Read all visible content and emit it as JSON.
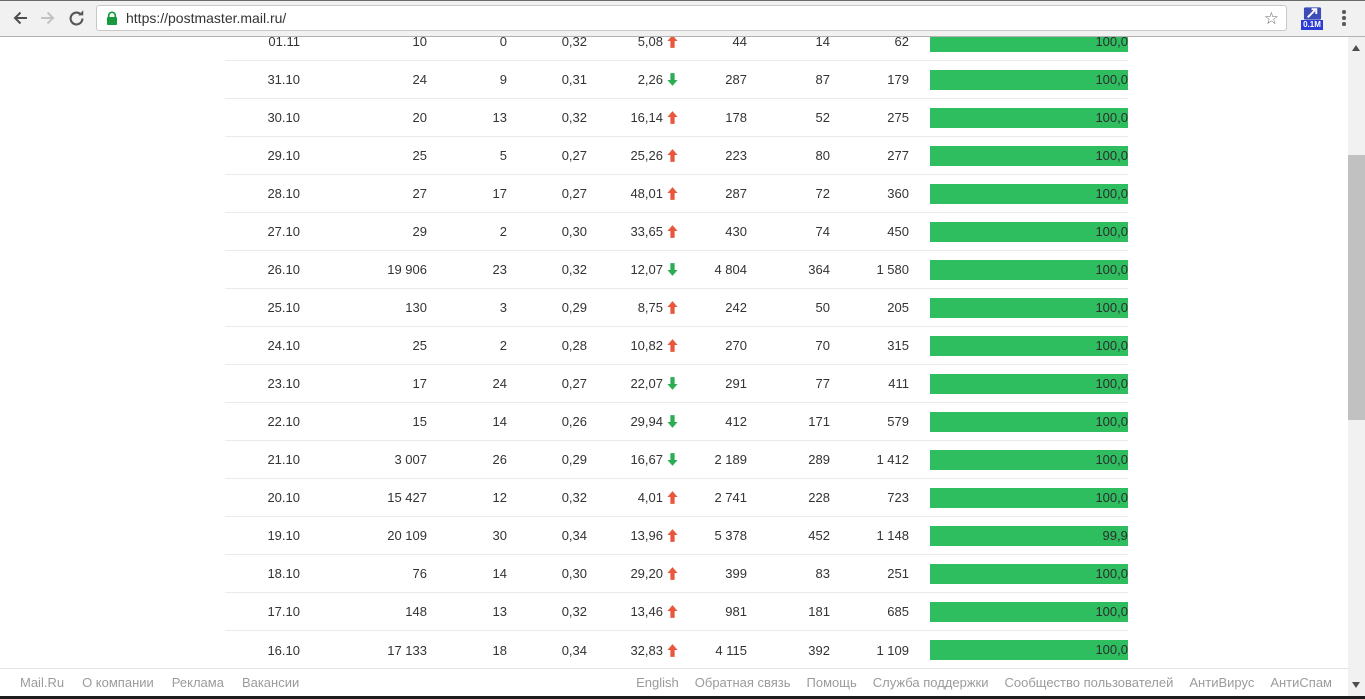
{
  "browser": {
    "url": "https://postmaster.mail.ru/",
    "extension_badge": "0.1M"
  },
  "colors": {
    "bar_green": "#2ebd5f",
    "trend_up": "#e8573c",
    "trend_down": "#2aae53"
  },
  "table": {
    "rows": [
      {
        "date": "01.11",
        "c1": "10",
        "c2": "0",
        "c3": "0,32",
        "trend_value": "5,08",
        "trend": "up",
        "c4": "44",
        "c5": "14",
        "c6": "62",
        "bar_label": "100,0",
        "bar_percent": 100
      },
      {
        "date": "31.10",
        "c1": "24",
        "c2": "9",
        "c3": "0,31",
        "trend_value": "2,26",
        "trend": "down",
        "c4": "287",
        "c5": "87",
        "c6": "179",
        "bar_label": "100,0",
        "bar_percent": 100
      },
      {
        "date": "30.10",
        "c1": "20",
        "c2": "13",
        "c3": "0,32",
        "trend_value": "16,14",
        "trend": "up",
        "c4": "178",
        "c5": "52",
        "c6": "275",
        "bar_label": "100,0",
        "bar_percent": 100
      },
      {
        "date": "29.10",
        "c1": "25",
        "c2": "5",
        "c3": "0,27",
        "trend_value": "25,26",
        "trend": "up",
        "c4": "223",
        "c5": "80",
        "c6": "277",
        "bar_label": "100,0",
        "bar_percent": 100
      },
      {
        "date": "28.10",
        "c1": "27",
        "c2": "17",
        "c3": "0,27",
        "trend_value": "48,01",
        "trend": "up",
        "c4": "287",
        "c5": "72",
        "c6": "360",
        "bar_label": "100,0",
        "bar_percent": 100
      },
      {
        "date": "27.10",
        "c1": "29",
        "c2": "2",
        "c3": "0,30",
        "trend_value": "33,65",
        "trend": "up",
        "c4": "430",
        "c5": "74",
        "c6": "450",
        "bar_label": "100,0",
        "bar_percent": 100
      },
      {
        "date": "26.10",
        "c1": "19 906",
        "c2": "23",
        "c3": "0,32",
        "trend_value": "12,07",
        "trend": "down",
        "c4": "4 804",
        "c5": "364",
        "c6": "1 580",
        "bar_label": "100,0",
        "bar_percent": 100
      },
      {
        "date": "25.10",
        "c1": "130",
        "c2": "3",
        "c3": "0,29",
        "trend_value": "8,75",
        "trend": "up",
        "c4": "242",
        "c5": "50",
        "c6": "205",
        "bar_label": "100,0",
        "bar_percent": 100
      },
      {
        "date": "24.10",
        "c1": "25",
        "c2": "2",
        "c3": "0,28",
        "trend_value": "10,82",
        "trend": "up",
        "c4": "270",
        "c5": "70",
        "c6": "315",
        "bar_label": "100,0",
        "bar_percent": 100
      },
      {
        "date": "23.10",
        "c1": "17",
        "c2": "24",
        "c3": "0,27",
        "trend_value": "22,07",
        "trend": "down",
        "c4": "291",
        "c5": "77",
        "c6": "411",
        "bar_label": "100,0",
        "bar_percent": 100
      },
      {
        "date": "22.10",
        "c1": "15",
        "c2": "14",
        "c3": "0,26",
        "trend_value": "29,94",
        "trend": "down",
        "c4": "412",
        "c5": "171",
        "c6": "579",
        "bar_label": "100,0",
        "bar_percent": 100
      },
      {
        "date": "21.10",
        "c1": "3 007",
        "c2": "26",
        "c3": "0,29",
        "trend_value": "16,67",
        "trend": "down",
        "c4": "2 189",
        "c5": "289",
        "c6": "1 412",
        "bar_label": "100,0",
        "bar_percent": 100
      },
      {
        "date": "20.10",
        "c1": "15 427",
        "c2": "12",
        "c3": "0,32",
        "trend_value": "4,01",
        "trend": "up",
        "c4": "2 741",
        "c5": "228",
        "c6": "723",
        "bar_label": "100,0",
        "bar_percent": 100
      },
      {
        "date": "19.10",
        "c1": "20 109",
        "c2": "30",
        "c3": "0,34",
        "trend_value": "13,96",
        "trend": "up",
        "c4": "5 378",
        "c5": "452",
        "c6": "1 148",
        "bar_label": "99,9",
        "bar_percent": 99.9
      },
      {
        "date": "18.10",
        "c1": "76",
        "c2": "14",
        "c3": "0,30",
        "trend_value": "29,20",
        "trend": "up",
        "c4": "399",
        "c5": "83",
        "c6": "251",
        "bar_label": "100,0",
        "bar_percent": 100
      },
      {
        "date": "17.10",
        "c1": "148",
        "c2": "13",
        "c3": "0,32",
        "trend_value": "13,46",
        "trend": "up",
        "c4": "981",
        "c5": "181",
        "c6": "685",
        "bar_label": "100,0",
        "bar_percent": 100
      },
      {
        "date": "16.10",
        "c1": "17 133",
        "c2": "18",
        "c3": "0,34",
        "trend_value": "32,83",
        "trend": "up",
        "c4": "4 115",
        "c5": "392",
        "c6": "1 109",
        "bar_label": "100,0",
        "bar_percent": 100
      }
    ]
  },
  "footer": {
    "left": [
      "Mail.Ru",
      "О компании",
      "Реклама",
      "Вакансии"
    ],
    "right": [
      "English",
      "Обратная связь",
      "Помощь",
      "Служба поддержки",
      "Сообщество пользователей",
      "АнтиВирус",
      "АнтиСпам"
    ]
  }
}
